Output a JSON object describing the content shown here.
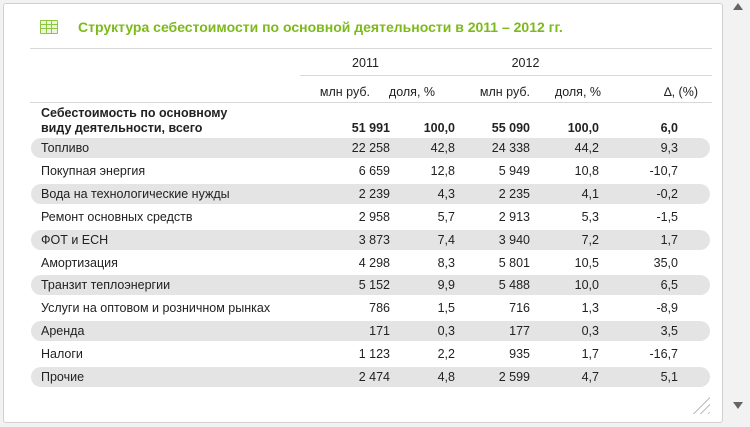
{
  "title": "Структура себестоимости по основной деятельности в 2011 – 2012 гг.",
  "columns": {
    "year_2011": "2011",
    "year_2012": "2012",
    "unit_rub": "млн руб.",
    "unit_share": "доля, %",
    "delta": "∆, (%)"
  },
  "total": {
    "label_line1": "Себестоимость по основному",
    "label_line2": "виду деятельности, всего",
    "v2011": "51 991",
    "s2011": "100,0",
    "v2012": "55 090",
    "s2012": "100,0",
    "delta": "6,0"
  },
  "rows": [
    {
      "label": "Топливо",
      "v2011": "22 258",
      "s2011": "42,8",
      "v2012": "24 338",
      "s2012": "44,2",
      "delta": "9,3"
    },
    {
      "label": "Покупная энергия",
      "v2011": "6 659",
      "s2011": "12,8",
      "v2012": "5 949",
      "s2012": "10,8",
      "delta": "-10,7"
    },
    {
      "label": "Вода на технологические нужды",
      "v2011": "2 239",
      "s2011": "4,3",
      "v2012": "2 235",
      "s2012": "4,1",
      "delta": "-0,2"
    },
    {
      "label": "Ремонт основных средств",
      "v2011": "2 958",
      "s2011": "5,7",
      "v2012": "2 913",
      "s2012": "5,3",
      "delta": "-1,5"
    },
    {
      "label": "ФОТ и ЕСН",
      "v2011": "3 873",
      "s2011": "7,4",
      "v2012": "3 940",
      "s2012": "7,2",
      "delta": "1,7"
    },
    {
      "label": "Амортизация",
      "v2011": "4 298",
      "s2011": "8,3",
      "v2012": "5 801",
      "s2012": "10,5",
      "delta": "35,0"
    },
    {
      "label": "Транзит теплоэнергии",
      "v2011": "5 152",
      "s2011": "9,9",
      "v2012": "5 488",
      "s2012": "10,0",
      "delta": "6,5"
    },
    {
      "label": "Услуги на оптовом и розничном рынках",
      "v2011": "786",
      "s2011": "1,5",
      "v2012": "716",
      "s2012": "1,3",
      "delta": "-8,9"
    },
    {
      "label": "Аренда",
      "v2011": "171",
      "s2011": "0,3",
      "v2012": "177",
      "s2012": "0,3",
      "delta": "3,5"
    },
    {
      "label": "Налоги",
      "v2011": "1 123",
      "s2011": "2,2",
      "v2012": "935",
      "s2012": "1,7",
      "delta": "-16,7"
    },
    {
      "label": "Прочие",
      "v2011": "2 474",
      "s2011": "4,8",
      "v2012": "2 599",
      "s2012": "4,7",
      "delta": "5,1"
    }
  ]
}
